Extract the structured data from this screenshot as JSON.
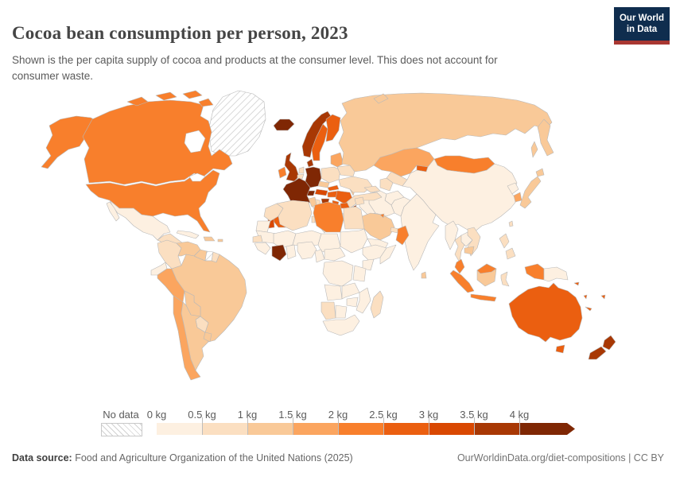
{
  "header": {
    "title": "Cocoa bean consumption per person, 2023",
    "subtitle": "Shown is the per capita supply of cocoa and products at the consumer level. This does not account for consumer waste.",
    "logo": {
      "line1": "Our World",
      "line2": "in Data",
      "bg_color": "#0f2d4e",
      "stripe_color": "#a93732"
    }
  },
  "legend": {
    "no_data_label": "No data",
    "unit_labels": [
      "0 kg",
      "0.5 kg",
      "1 kg",
      "1.5 kg",
      "2 kg",
      "2.5 kg",
      "3 kg",
      "3.5 kg",
      "4 kg"
    ],
    "bin_colors": [
      "#FDF0E1",
      "#FBDFC1",
      "#F9C998",
      "#FBA55F",
      "#F87F2C",
      "#EB5F10",
      "#D94801",
      "#A83804",
      "#7F2704"
    ]
  },
  "footer": {
    "datasource_label": "Data source:",
    "datasource_text": " Food and Agriculture Organization of the United Nations (2025)",
    "credit": "OurWorldinData.org/diet-compositions | CC BY"
  },
  "map": {
    "ocean_color": "#ffffff",
    "border_color": "#b8b8b8",
    "no_data_fill": "url(#hatch)",
    "fills": {
      "usa": "#F87F2C",
      "canada": "#F87F2C",
      "greenland": "url(#hatch)",
      "mexico": "#FDF0E1",
      "centralamerica": "#FBDFC1",
      "cuba": "#FDF0E1",
      "dominicanrep": "#F9C998",
      "puertorico": "#F9C998",
      "colombia": "#FBDFC1",
      "venezuela": "#F9C998",
      "guyana": "#F9C998",
      "suriname": "url(#hatch)",
      "frenchguiana": "#FBDFC1",
      "ecuador": "#FDF0E1",
      "peru": "#FBA55F",
      "brazil": "#F9C998",
      "bolivia": "#F9C998",
      "paraguay": "#FBDFC1",
      "chile": "#FBA55F",
      "argentina": "#F9C998",
      "uruguay": "#F9C998",
      "iceland": "#7F2704",
      "uk": "#A83804",
      "ireland": "#F87F2C",
      "norway": "#A83804",
      "sweden": "#EB5F10",
      "finland": "#EB5F10",
      "denmark": "#A83804",
      "netherlands": "#FBDFC1",
      "belgium": "#FBDFC1",
      "germany": "#7F2704",
      "poland": "#FBDFC1",
      "czechia": "#F9C998",
      "slovakia": "#EB5F10",
      "austria": "#D94801",
      "switzerland": "#7F2704",
      "france": "#7F2704",
      "spain": "#EB5F10",
      "portugal": "#D94801",
      "italy": "#FBDFC1",
      "croatia": "#A83804",
      "bosnia": "#EB5F10",
      "serbia": "#EB5F10",
      "albania": "#D94801",
      "greece": "#FBDFC1",
      "hungary": "#EB5F10",
      "romania": "#EB5F10",
      "bulgaria": "#EB5F10",
      "moldova": "#F9C998",
      "ukraine": "#FBDFC1",
      "belarus": "#FBDFC1",
      "baltics": "#FBA55F",
      "russia": "#F9C998",
      "turkey": "#FBDFC1",
      "caucasus": "#FBDFC1",
      "kazakhstan": "#FBA55F",
      "uzbekistan": "#FBDFC1",
      "turkmenistan": "#FBDFC1",
      "kyrgyzstan": "#EB5F10",
      "tajikistan": "#FBDFC1",
      "mongolia": "#F87F2C",
      "china": "#FDF0E1",
      "taiwan": "#FBDFC1",
      "northkorea": "#FDF0E1",
      "southkorea": "#FBA55F",
      "japan": "#F9C998",
      "india": "#FDF0E1",
      "pakistan": "#FDF0E1",
      "afghanistan": "#FDF0E1",
      "iran": "#FDF0E1",
      "iraq": "#FDF0E1",
      "syria": "#FBDFC1",
      "lebanon": "#A83804",
      "israel": "#7F2704",
      "cyprus": "#D94801",
      "jordan": "#FBDFC1",
      "saudiarabia": "#F9C998",
      "kuwait": "#F87F2C",
      "uae": "#FBDFC1",
      "oman": "#F87F2C",
      "yemen": "#FDF0E1",
      "morocco": "#FBDFC1",
      "westsahara": "#FDF0E1",
      "algeria": "#FBDFC1",
      "tunisia": "#F9C998",
      "libya": "#F87F2C",
      "egypt": "#FBDFC1",
      "mauritania": "#FDF0E1",
      "mali": "#FDF0E1",
      "niger": "#FDF0E1",
      "chad": "#FDF0E1",
      "sudan": "#FDF0E1",
      "senegal": "#FBDFC1",
      "guinea": "#FDF0E1",
      "cotedivoire": "#7F2704",
      "ghana": "#FDF0E1",
      "nigeria": "#FDF0E1",
      "cameroon": "#FDF0E1",
      "centralafricanrep": "#FDF0E1",
      "ethiopia": "#FDF0E1",
      "somalia": "#FDF0E1",
      "kenya": "#FDF0E1",
      "drc": "#FDF0E1",
      "tanzania": "#FDF0E1",
      "angola": "#FDF0E1",
      "zambia": "#FDF0E1",
      "mozambique": "#FDF0E1",
      "zimbabwe": "#FDF0E1",
      "namibia": "#FBDFC1",
      "botswana": "#FDF0E1",
      "southafrica": "#FDF0E1",
      "madagascar": "#FBDFC1",
      "myanmar": "#FDF0E1",
      "thailand": "#FBDFC1",
      "laos": "#FDF0E1",
      "vietnam": "#FBDFC1",
      "cambodia": "#F9C998",
      "srilanka": "#F9C998",
      "malaysia": "#F87F2C",
      "indonesia": "#F87F2C",
      "borneoindonesia": "#F9C998",
      "sulawesi": "#FBDFC1",
      "philippines": "#FBDFC1",
      "papuanewguinea": "#FDF0E1",
      "solomon": "#EB5F10",
      "vanuatu": "#EB5F10",
      "fiji": "#EB5F10",
      "newcaledonia": "#EB5F10",
      "australia": "#EB5F10",
      "newzealand": "#A83804"
    }
  },
  "chart_data": {
    "type": "choropleth_map",
    "title": "Cocoa bean consumption per person, 2023",
    "unit": "kg per person per year",
    "year": 2023,
    "legend_bins": [
      {
        "range": "0–0.5 kg",
        "color": "#FDF0E1"
      },
      {
        "range": "0.5–1 kg",
        "color": "#FBDFC1"
      },
      {
        "range": "1–1.5 kg",
        "color": "#F9C998"
      },
      {
        "range": "1.5–2 kg",
        "color": "#FBA55F"
      },
      {
        "range": "2–2.5 kg",
        "color": "#F87F2C"
      },
      {
        "range": "2.5–3 kg",
        "color": "#EB5F10"
      },
      {
        "range": "3–3.5 kg",
        "color": "#D94801"
      },
      {
        "range": "3.5–4 kg",
        "color": "#A83804"
      },
      {
        "range": "4+ kg",
        "color": "#7F2704"
      }
    ],
    "no_data_regions": [
      "Greenland",
      "Suriname"
    ],
    "countries": [
      {
        "name": "United States",
        "value_range_kg": "2–2.5"
      },
      {
        "name": "Canada",
        "value_range_kg": "2–2.5"
      },
      {
        "name": "Mexico",
        "value_range_kg": "0–0.5"
      },
      {
        "name": "Guatemala",
        "value_range_kg": "0.5–1"
      },
      {
        "name": "Colombia",
        "value_range_kg": "0.5–1"
      },
      {
        "name": "Venezuela",
        "value_range_kg": "1–1.5"
      },
      {
        "name": "Ecuador",
        "value_range_kg": "0–0.5"
      },
      {
        "name": "Peru",
        "value_range_kg": "1.5–2"
      },
      {
        "name": "Brazil",
        "value_range_kg": "1–1.5"
      },
      {
        "name": "Bolivia",
        "value_range_kg": "1–1.5"
      },
      {
        "name": "Paraguay",
        "value_range_kg": "0.5–1"
      },
      {
        "name": "Chile",
        "value_range_kg": "1.5–2"
      },
      {
        "name": "Argentina",
        "value_range_kg": "1–1.5"
      },
      {
        "name": "Iceland",
        "value_range_kg": "4+"
      },
      {
        "name": "United Kingdom",
        "value_range_kg": "3.5–4"
      },
      {
        "name": "Ireland",
        "value_range_kg": "2–2.5"
      },
      {
        "name": "Norway",
        "value_range_kg": "3.5–4"
      },
      {
        "name": "Sweden",
        "value_range_kg": "2.5–3"
      },
      {
        "name": "Finland",
        "value_range_kg": "2.5–3"
      },
      {
        "name": "Denmark",
        "value_range_kg": "3.5–4"
      },
      {
        "name": "Germany",
        "value_range_kg": "4+"
      },
      {
        "name": "France",
        "value_range_kg": "4+"
      },
      {
        "name": "Switzerland",
        "value_range_kg": "4+"
      },
      {
        "name": "Austria",
        "value_range_kg": "3–3.5"
      },
      {
        "name": "Spain",
        "value_range_kg": "2.5–3"
      },
      {
        "name": "Portugal",
        "value_range_kg": "3–3.5"
      },
      {
        "name": "Italy",
        "value_range_kg": "0.5–1"
      },
      {
        "name": "Poland",
        "value_range_kg": "0.5–1"
      },
      {
        "name": "Croatia",
        "value_range_kg": "3.5–4"
      },
      {
        "name": "Hungary",
        "value_range_kg": "2.5–3"
      },
      {
        "name": "Romania",
        "value_range_kg": "2.5–3"
      },
      {
        "name": "Bulgaria",
        "value_range_kg": "2.5–3"
      },
      {
        "name": "Greece",
        "value_range_kg": "0.5–1"
      },
      {
        "name": "Ukraine",
        "value_range_kg": "0.5–1"
      },
      {
        "name": "Russia",
        "value_range_kg": "1–1.5"
      },
      {
        "name": "Turkey",
        "value_range_kg": "0.5–1"
      },
      {
        "name": "Kazakhstan",
        "value_range_kg": "1.5–2"
      },
      {
        "name": "Mongolia",
        "value_range_kg": "2–2.5"
      },
      {
        "name": "China",
        "value_range_kg": "0–0.5"
      },
      {
        "name": "India",
        "value_range_kg": "0–0.5"
      },
      {
        "name": "Japan",
        "value_range_kg": "1–1.5"
      },
      {
        "name": "South Korea",
        "value_range_kg": "1.5–2"
      },
      {
        "name": "Lebanon",
        "value_range_kg": "3.5–4"
      },
      {
        "name": "Israel",
        "value_range_kg": "4+"
      },
      {
        "name": "Saudi Arabia",
        "value_range_kg": "1–1.5"
      },
      {
        "name": "Oman",
        "value_range_kg": "2–2.5"
      },
      {
        "name": "Libya",
        "value_range_kg": "2–2.5"
      },
      {
        "name": "Egypt",
        "value_range_kg": "0.5–1"
      },
      {
        "name": "Algeria",
        "value_range_kg": "0.5–1"
      },
      {
        "name": "Cote d'Ivoire",
        "value_range_kg": "4+"
      },
      {
        "name": "Nigeria",
        "value_range_kg": "0–0.5"
      },
      {
        "name": "Democratic Republic of Congo",
        "value_range_kg": "0–0.5"
      },
      {
        "name": "Ethiopia",
        "value_range_kg": "0–0.5"
      },
      {
        "name": "South Africa",
        "value_range_kg": "0–0.5"
      },
      {
        "name": "Namibia",
        "value_range_kg": "0.5–1"
      },
      {
        "name": "Madagascar",
        "value_range_kg": "0.5–1"
      },
      {
        "name": "Thailand",
        "value_range_kg": "0.5–1"
      },
      {
        "name": "Malaysia",
        "value_range_kg": "2–2.5"
      },
      {
        "name": "Indonesia",
        "value_range_kg": "2–2.5"
      },
      {
        "name": "Philippines",
        "value_range_kg": "0.5–1"
      },
      {
        "name": "Papua New Guinea",
        "value_range_kg": "0–0.5"
      },
      {
        "name": "Australia",
        "value_range_kg": "2.5–3"
      },
      {
        "name": "New Zealand",
        "value_range_kg": "3.5–4"
      },
      {
        "name": "Fiji",
        "value_range_kg": "2.5–3"
      }
    ]
  }
}
